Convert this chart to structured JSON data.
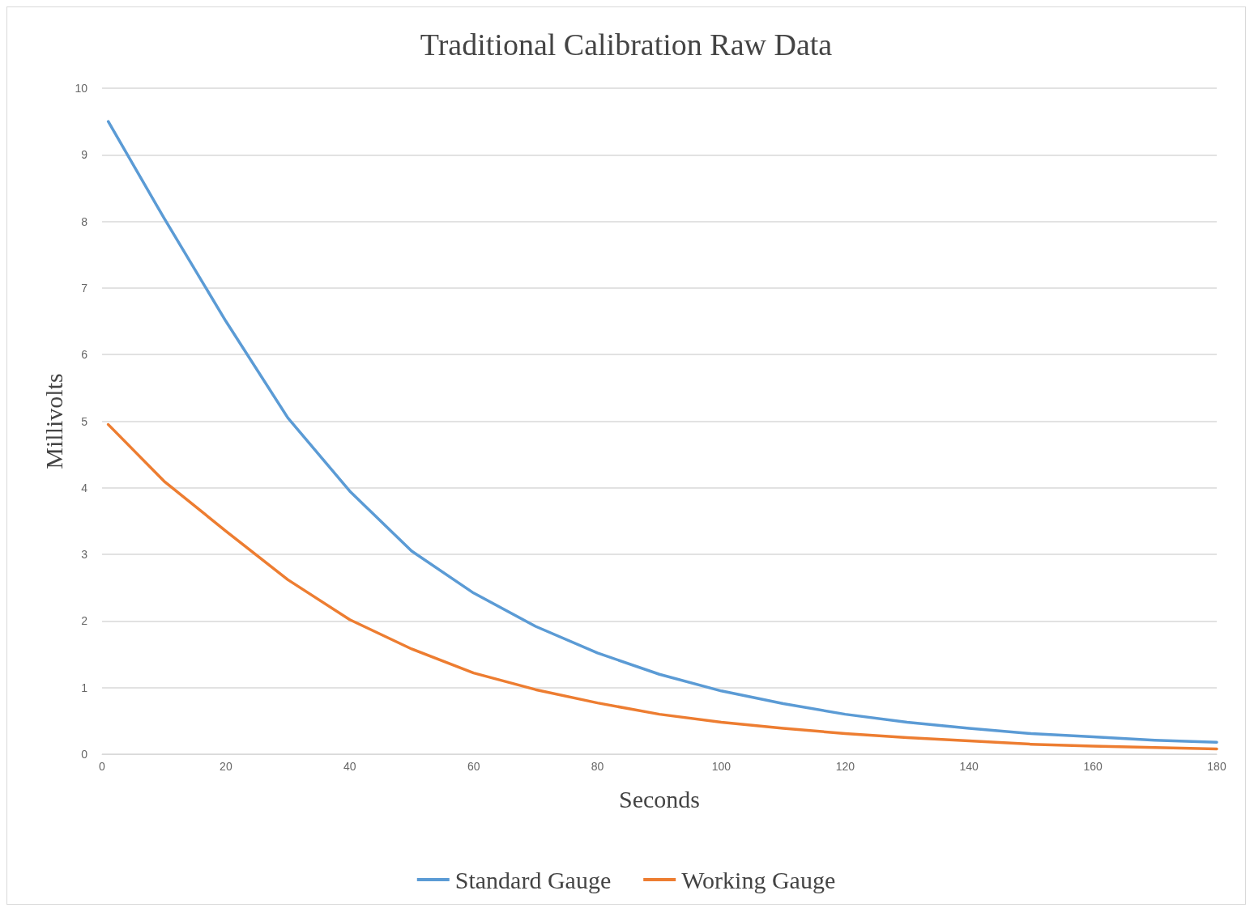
{
  "chart_data": {
    "type": "line",
    "title": "Traditional Calibration Raw Data",
    "xlabel": "Seconds",
    "ylabel": "Millivolts",
    "x": [
      1,
      10,
      20,
      30,
      40,
      50,
      60,
      70,
      80,
      90,
      100,
      110,
      120,
      130,
      140,
      150,
      160,
      170,
      180
    ],
    "series": [
      {
        "name": "Standard Gauge",
        "color": "#5b9bd5",
        "values": [
          9.5,
          8.05,
          6.5,
          5.05,
          3.95,
          3.05,
          2.42,
          1.92,
          1.52,
          1.2,
          0.95,
          0.76,
          0.6,
          0.48,
          0.39,
          0.31,
          0.26,
          0.21,
          0.18
        ]
      },
      {
        "name": "Working Gauge",
        "color": "#ed7d31",
        "values": [
          4.95,
          4.1,
          3.35,
          2.62,
          2.02,
          1.58,
          1.22,
          0.97,
          0.77,
          0.6,
          0.48,
          0.39,
          0.31,
          0.25,
          0.2,
          0.15,
          0.12,
          0.1,
          0.08
        ]
      }
    ],
    "xlim": [
      0,
      180
    ],
    "xticks": [
      0,
      20,
      40,
      60,
      80,
      100,
      120,
      140,
      160,
      180
    ],
    "ylim": [
      0,
      10
    ],
    "yticks": [
      0,
      1,
      2,
      3,
      4,
      5,
      6,
      7,
      8,
      9,
      10
    ],
    "grid": "y",
    "legend": "bottom",
    "marker": "none",
    "line_style": "solid"
  }
}
